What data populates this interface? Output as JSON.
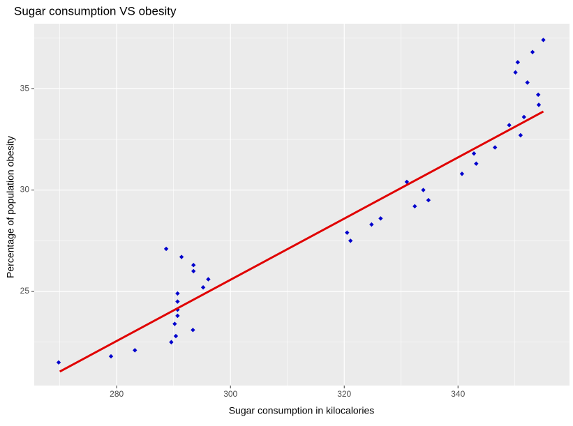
{
  "chart_data": {
    "type": "scatter",
    "title": "Sugar consumption VS obesity",
    "x_label": "Sugar consumption in kilocalories",
    "y_label": "Percentage of population obesity",
    "xlim": [
      265.5,
      359.6
    ],
    "ylim": [
      20.36,
      38.2
    ],
    "xticks": [
      280,
      300,
      320,
      340
    ],
    "yticks": [
      25,
      30,
      35
    ],
    "x_minor_grid": [
      270,
      290,
      310,
      330,
      350
    ],
    "y_minor_grid": [
      22.5,
      27.5,
      32.5,
      37.5
    ],
    "grid": true,
    "point_color": "#0000cc",
    "x": [
      269.8,
      279.0,
      283.2,
      288.7,
      289.6,
      290.2,
      290.4,
      290.7,
      290.7,
      290.7,
      290.7,
      291.4,
      293.4,
      293.5,
      293.5,
      295.2,
      296.1,
      320.5,
      321.1,
      324.8,
      326.4,
      331.0,
      332.4,
      333.9,
      334.8,
      340.7,
      342.8,
      343.2,
      346.5,
      349.0,
      350.1,
      350.5,
      351.0,
      351.6,
      352.2,
      353.1,
      354.1,
      354.2,
      355.0
    ],
    "values": [
      21.5,
      21.8,
      22.1,
      27.1,
      22.5,
      23.4,
      22.8,
      23.8,
      24.1,
      24.5,
      24.9,
      26.7,
      23.1,
      26.0,
      26.3,
      25.2,
      25.6,
      27.9,
      27.5,
      28.3,
      28.6,
      30.4,
      29.2,
      30.0,
      29.5,
      30.8,
      31.8,
      31.3,
      32.1,
      33.2,
      35.8,
      36.3,
      32.7,
      33.6,
      35.3,
      36.8,
      34.7,
      34.2,
      37.4
    ],
    "fit_line": {
      "color": "#e00000",
      "x": [
        270,
        355
      ],
      "values": [
        21.05,
        33.87
      ]
    }
  }
}
